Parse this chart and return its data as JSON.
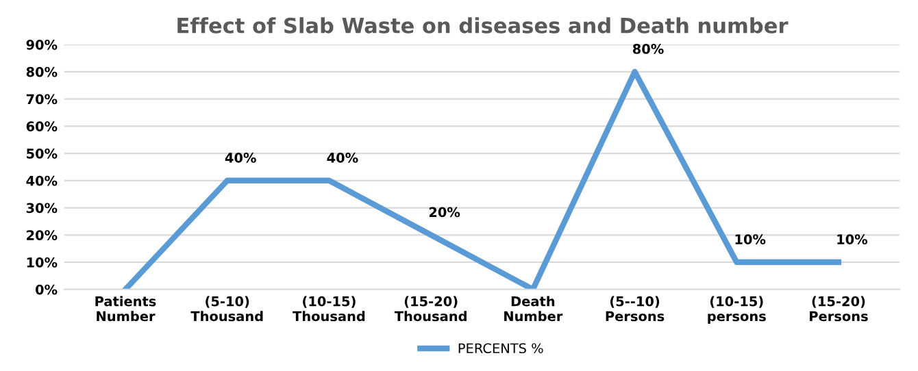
{
  "chart_data": {
    "type": "line",
    "title": "Effect of Slab Waste on diseases and Death number",
    "categories": [
      "Patients\nNumber",
      "(5-10)\nThousand",
      "(10-15)\nThousand",
      "(15-20)\nThousand",
      "Death\nNumber",
      "(5--10)\nPersons",
      "(10-15)\npersons",
      "(15-20)\nPersons"
    ],
    "series": [
      {
        "name": "PERCENTS %",
        "color": "#5b9bd5",
        "values": [
          0,
          40,
          40,
          20,
          0,
          80,
          10,
          10
        ],
        "value_labels": [
          null,
          "40%",
          "40%",
          "20%",
          null,
          "80%",
          "10%",
          "10%"
        ]
      }
    ],
    "ylim": [
      0,
      90
    ],
    "yticks": [
      {
        "value": 0,
        "label": "0%"
      },
      {
        "value": 10,
        "label": "10%"
      },
      {
        "value": 20,
        "label": "20%"
      },
      {
        "value": 30,
        "label": "30%"
      },
      {
        "value": 40,
        "label": "40%"
      },
      {
        "value": 50,
        "label": "50%"
      },
      {
        "value": 60,
        "label": "60%"
      },
      {
        "value": 70,
        "label": "70%"
      },
      {
        "value": 80,
        "label": "80%"
      },
      {
        "value": 90,
        "label": "90%"
      }
    ],
    "grid": "y",
    "legend": "bottom",
    "marker": "none",
    "line_style": "solid"
  }
}
